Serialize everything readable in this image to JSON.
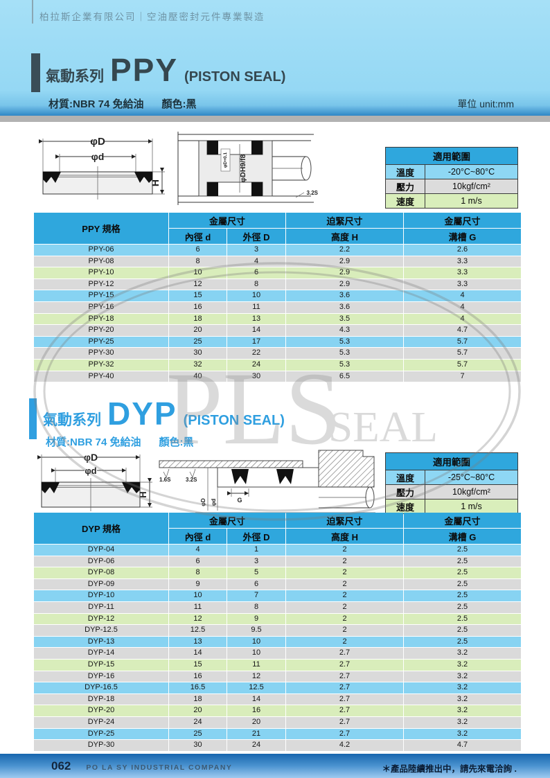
{
  "page": {
    "company_header": "柏拉斯企業有限公司｜空油壓密封元件專業製造",
    "footer": {
      "page_number": "062",
      "company_name": "PO LA SY INDUSTRIAL COMPANY",
      "note": "＊產品陸續推出中，請先來電洽詢 ."
    },
    "colors": {
      "banner_blue": "#95d8f4",
      "table_header_blue": "#2fa7dd",
      "row_blue": "#87d3f2",
      "row_gray": "#dadada",
      "row_green": "#d9edbb",
      "ppy_title_color": "#35474f",
      "dyp_accent": "#2f9fe0",
      "footer_blue_top": "#1866ae"
    }
  },
  "watermark": {
    "main": "PLS",
    "sub": "SEAL"
  },
  "ppy": {
    "series_prefix": "氣動系列",
    "series_name": "PPY",
    "series_suffix": "(PISTON SEAL)",
    "material": "材質:NBR 74 免給油",
    "color": "顏色:黑",
    "unit": "單位 unit:mm",
    "diagram": {
      "dim_D": "φD",
      "dim_d": "φd",
      "dim_H": "H",
      "bore_tol": "φD+0.1",
      "bore_fit": "φDH9/f8",
      "finish": "3.2S"
    },
    "range": {
      "title": "適用範圍",
      "rows": [
        [
          "溫度",
          "-20°C~80°C"
        ],
        [
          "壓力",
          "10kgf/cm²"
        ],
        [
          "速度",
          "1 m/s"
        ]
      ]
    },
    "spec": {
      "col1": "PPY 規格",
      "group_metal": "金屬尺寸",
      "group_tight": "迫緊尺寸",
      "group_metal2": "金屬尺寸",
      "sub_id": "內徑 d",
      "sub_od": "外徑 D",
      "sub_h": "高度 H",
      "sub_g": "溝槽 G",
      "rows": [
        [
          "PPY-06",
          "6",
          "3",
          "2.2",
          "2.6"
        ],
        [
          "PPY-08",
          "8",
          "4",
          "2.9",
          "3.3"
        ],
        [
          "PPY-10",
          "10",
          "6",
          "2.9",
          "3.3"
        ],
        [
          "PPY-12",
          "12",
          "8",
          "2.9",
          "3.3"
        ],
        [
          "PPY-15",
          "15",
          "10",
          "3.6",
          "4"
        ],
        [
          "PPY-16",
          "16",
          "11",
          "3.6",
          "4"
        ],
        [
          "PPY-18",
          "18",
          "13",
          "3.5",
          "4"
        ],
        [
          "PPY-20",
          "20",
          "14",
          "4.3",
          "4.7"
        ],
        [
          "PPY-25",
          "25",
          "17",
          "5.3",
          "5.7"
        ],
        [
          "PPY-30",
          "30",
          "22",
          "5.3",
          "5.7"
        ],
        [
          "PPY-32",
          "32",
          "24",
          "5.3",
          "5.7"
        ],
        [
          "PPY-40",
          "40",
          "30",
          "6.5",
          "7"
        ]
      ]
    }
  },
  "dyp": {
    "series_prefix": "氣動系列",
    "series_name": "DYP",
    "series_suffix": "(PISTON SEAL)",
    "material": "材質:NBR 74 免給油",
    "color": "顏色:黑",
    "diagram": {
      "dim_D": "φD",
      "dim_d": "φd",
      "dim_H": "H",
      "finish1": "1.6S",
      "finish2": "3.2S",
      "groove": "G",
      "bore_D": "φD",
      "bore_d": "φd"
    },
    "range": {
      "title": "適用範圍",
      "rows": [
        [
          "溫度",
          "-25°C~80°C"
        ],
        [
          "壓力",
          "10kgf/cm²"
        ],
        [
          "速度",
          "1 m/s"
        ]
      ]
    },
    "spec": {
      "col1": "DYP 規格",
      "group_metal": "金屬尺寸",
      "group_tight": "迫緊尺寸",
      "group_metal2": "金屬尺寸",
      "sub_id": "內徑 d",
      "sub_od": "外徑 D",
      "sub_h": "高度 H",
      "sub_g": "溝槽 G",
      "rows": [
        [
          "DYP-04",
          "4",
          "1",
          "2",
          "2.5"
        ],
        [
          "DYP-06",
          "6",
          "3",
          "2",
          "2.5"
        ],
        [
          "DYP-08",
          "8",
          "5",
          "2",
          "2.5"
        ],
        [
          "DYP-09",
          "9",
          "6",
          "2",
          "2.5"
        ],
        [
          "DYP-10",
          "10",
          "7",
          "2",
          "2.5"
        ],
        [
          "DYP-11",
          "11",
          "8",
          "2",
          "2.5"
        ],
        [
          "DYP-12",
          "12",
          "9",
          "2",
          "2.5"
        ],
        [
          "DYP-12.5",
          "12.5",
          "9.5",
          "2",
          "2.5"
        ],
        [
          "DYP-13",
          "13",
          "10",
          "2",
          "2.5"
        ],
        [
          "DYP-14",
          "14",
          "10",
          "2.7",
          "3.2"
        ],
        [
          "DYP-15",
          "15",
          "11",
          "2.7",
          "3.2"
        ],
        [
          "DYP-16",
          "16",
          "12",
          "2.7",
          "3.2"
        ],
        [
          "DYP-16.5",
          "16.5",
          "12.5",
          "2.7",
          "3.2"
        ],
        [
          "DYP-18",
          "18",
          "14",
          "2.7",
          "3.2"
        ],
        [
          "DYP-20",
          "20",
          "16",
          "2.7",
          "3.2"
        ],
        [
          "DYP-24",
          "24",
          "20",
          "2.7",
          "3.2"
        ],
        [
          "DYP-25",
          "25",
          "21",
          "2.7",
          "3.2"
        ],
        [
          "DYP-30",
          "30",
          "24",
          "4.2",
          "4.7"
        ]
      ]
    }
  }
}
